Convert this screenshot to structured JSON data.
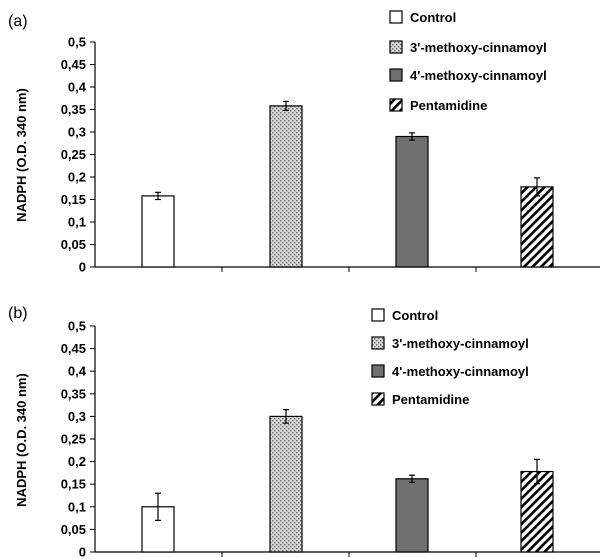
{
  "chart_data": [
    {
      "type": "bar",
      "panel_label": "(a)",
      "ylabel": "NADPH (O.D. 340 nm)",
      "ylim": [
        0,
        0.5
      ],
      "yticks": [
        0,
        0.05,
        0.1,
        0.15,
        0.2,
        0.25,
        0.3,
        0.35,
        0.4,
        0.45,
        0.5
      ],
      "ytick_labels": [
        "0",
        "0,05",
        "0,1",
        "0,15",
        "0,2",
        "0,25",
        "0,3",
        "0,35",
        "0,4",
        "0,45",
        "0,5"
      ],
      "categories": [
        "Control",
        "3'-methoxy-cinnamoyl",
        "4'-methoxy-cinnamoyl",
        "Pentamidine"
      ],
      "values": [
        0.158,
        0.358,
        0.29,
        0.178
      ],
      "errors": [
        0.008,
        0.01,
        0.008,
        0.02
      ],
      "legend": [
        "Control",
        "3'-methoxy-cinnamoyl",
        "4'-methoxy-cinnamoyl",
        "Pentamidine"
      ],
      "legend_position": "top-right"
    },
    {
      "type": "bar",
      "panel_label": "(b)",
      "ylabel": "NADPH (O.D. 340 nm)",
      "ylim": [
        0,
        0.5
      ],
      "yticks": [
        0,
        0.05,
        0.1,
        0.15,
        0.2,
        0.25,
        0.3,
        0.35,
        0.4,
        0.45,
        0.5
      ],
      "ytick_labels": [
        "0",
        "0,05",
        "0,1",
        "0,15",
        "0,2",
        "0,25",
        "0,3",
        "0,35",
        "0,4",
        "0,45",
        "0,5"
      ],
      "categories": [
        "Control",
        "3'-methoxy-cinnamoyl",
        "4'-methoxy-cinnamoyl",
        "Pentamidine"
      ],
      "values": [
        0.1,
        0.3,
        0.162,
        0.178
      ],
      "errors": [
        0.03,
        0.015,
        0.008,
        0.027
      ],
      "legend": [
        "Control",
        "3'-methoxy-cinnamoyl",
        "4'-methoxy-cinnamoyl",
        "Pentamidine"
      ],
      "legend_position": "top-right"
    }
  ],
  "colors": {
    "control": "#ffffff",
    "methoxy3": "#c8c8c8",
    "methoxy4": "#707070",
    "pentamidine": "#ffffff",
    "stroke": "#000000"
  }
}
